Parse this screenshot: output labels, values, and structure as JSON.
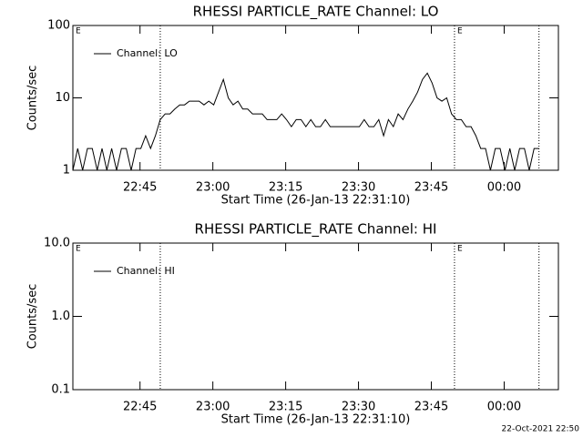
{
  "chart_data": [
    {
      "type": "line",
      "title": "RHESSI PARTICLE_RATE Channel: LO",
      "x_label": "Start Time (26-Jan-13 22:31:10)",
      "y_label": "Counts/sec",
      "log_y": true,
      "xlim": [
        0,
        100
      ],
      "ylim": [
        1,
        100
      ],
      "xticks": [
        {
          "value": 13.83,
          "label": "22:45"
        },
        {
          "value": 28.83,
          "label": "23:00"
        },
        {
          "value": 43.83,
          "label": "23:15"
        },
        {
          "value": 58.83,
          "label": "23:30"
        },
        {
          "value": 73.83,
          "label": "23:45"
        },
        {
          "value": 88.83,
          "label": "00:00"
        }
      ],
      "yticks": [
        1,
        10,
        100
      ],
      "vlines": [
        18,
        78.6,
        96
      ],
      "annotations": [
        {
          "text": "E",
          "x": 0
        },
        {
          "text": "E",
          "x": 78.6
        }
      ],
      "x": [
        0,
        1,
        2,
        3,
        4,
        5,
        6,
        7,
        8,
        9,
        10,
        11,
        12,
        13,
        14,
        15,
        16,
        17,
        18,
        19,
        20,
        21,
        22,
        23,
        24,
        25,
        26,
        27,
        28,
        29,
        30,
        31,
        32,
        33,
        34,
        35,
        36,
        37,
        38,
        39,
        40,
        41,
        42,
        43,
        44,
        45,
        46,
        47,
        48,
        49,
        50,
        51,
        52,
        53,
        54,
        55,
        56,
        57,
        58,
        59,
        60,
        61,
        62,
        63,
        64,
        65,
        66,
        67,
        68,
        69,
        70,
        71,
        72,
        73,
        74,
        75,
        76,
        77,
        78,
        79,
        80,
        81,
        82,
        83,
        84,
        85,
        86,
        87,
        88,
        89,
        90,
        91,
        92,
        93,
        94,
        95,
        96
      ],
      "series": [
        {
          "name": "Channel: LO",
          "color": "#000000",
          "values": [
            1,
            2,
            1,
            2,
            2,
            1,
            2,
            1,
            2,
            1,
            2,
            2,
            1,
            2,
            2,
            3,
            2,
            3,
            5,
            6,
            6,
            7,
            8,
            8,
            9,
            9,
            9,
            8,
            9,
            8,
            12,
            18,
            10,
            8,
            9,
            7,
            7,
            6,
            6,
            6,
            5,
            5,
            5,
            6,
            5,
            4,
            5,
            5,
            4,
            5,
            4,
            4,
            5,
            4,
            4,
            4,
            4,
            4,
            4,
            4,
            5,
            4,
            4,
            5,
            3,
            5,
            4,
            6,
            5,
            7,
            9,
            12,
            18,
            22,
            16,
            10,
            9,
            10,
            6,
            5,
            5,
            4,
            4,
            3,
            2,
            2,
            1,
            2,
            2,
            1,
            2,
            1,
            2,
            2,
            1,
            2,
            2
          ]
        }
      ]
    },
    {
      "type": "line",
      "title": "RHESSI PARTICLE_RATE Channel: HI",
      "x_label": "Start Time (26-Jan-13 22:31:10)",
      "y_label": "Counts/sec",
      "log_y": true,
      "xlim": [
        0,
        100
      ],
      "ylim": [
        0.1,
        10
      ],
      "xticks": [
        {
          "value": 13.83,
          "label": "22:45"
        },
        {
          "value": 28.83,
          "label": "23:00"
        },
        {
          "value": 43.83,
          "label": "23:15"
        },
        {
          "value": 58.83,
          "label": "23:30"
        },
        {
          "value": 73.83,
          "label": "23:45"
        },
        {
          "value": 88.83,
          "label": "00:00"
        }
      ],
      "yticks": [
        {
          "value": 0.1,
          "label": "0.1"
        },
        {
          "value": 1,
          "label": "1.0"
        },
        {
          "value": 10,
          "label": "10.0"
        }
      ],
      "vlines": [
        18,
        78.6,
        96
      ],
      "annotations": [
        {
          "text": "E",
          "x": 0
        },
        {
          "text": "E",
          "x": 78.6
        }
      ],
      "x": [],
      "series": [
        {
          "name": "Channel: HI",
          "color": "#000000",
          "values": []
        }
      ]
    }
  ],
  "footer": "22-Oct-2021 22:50"
}
